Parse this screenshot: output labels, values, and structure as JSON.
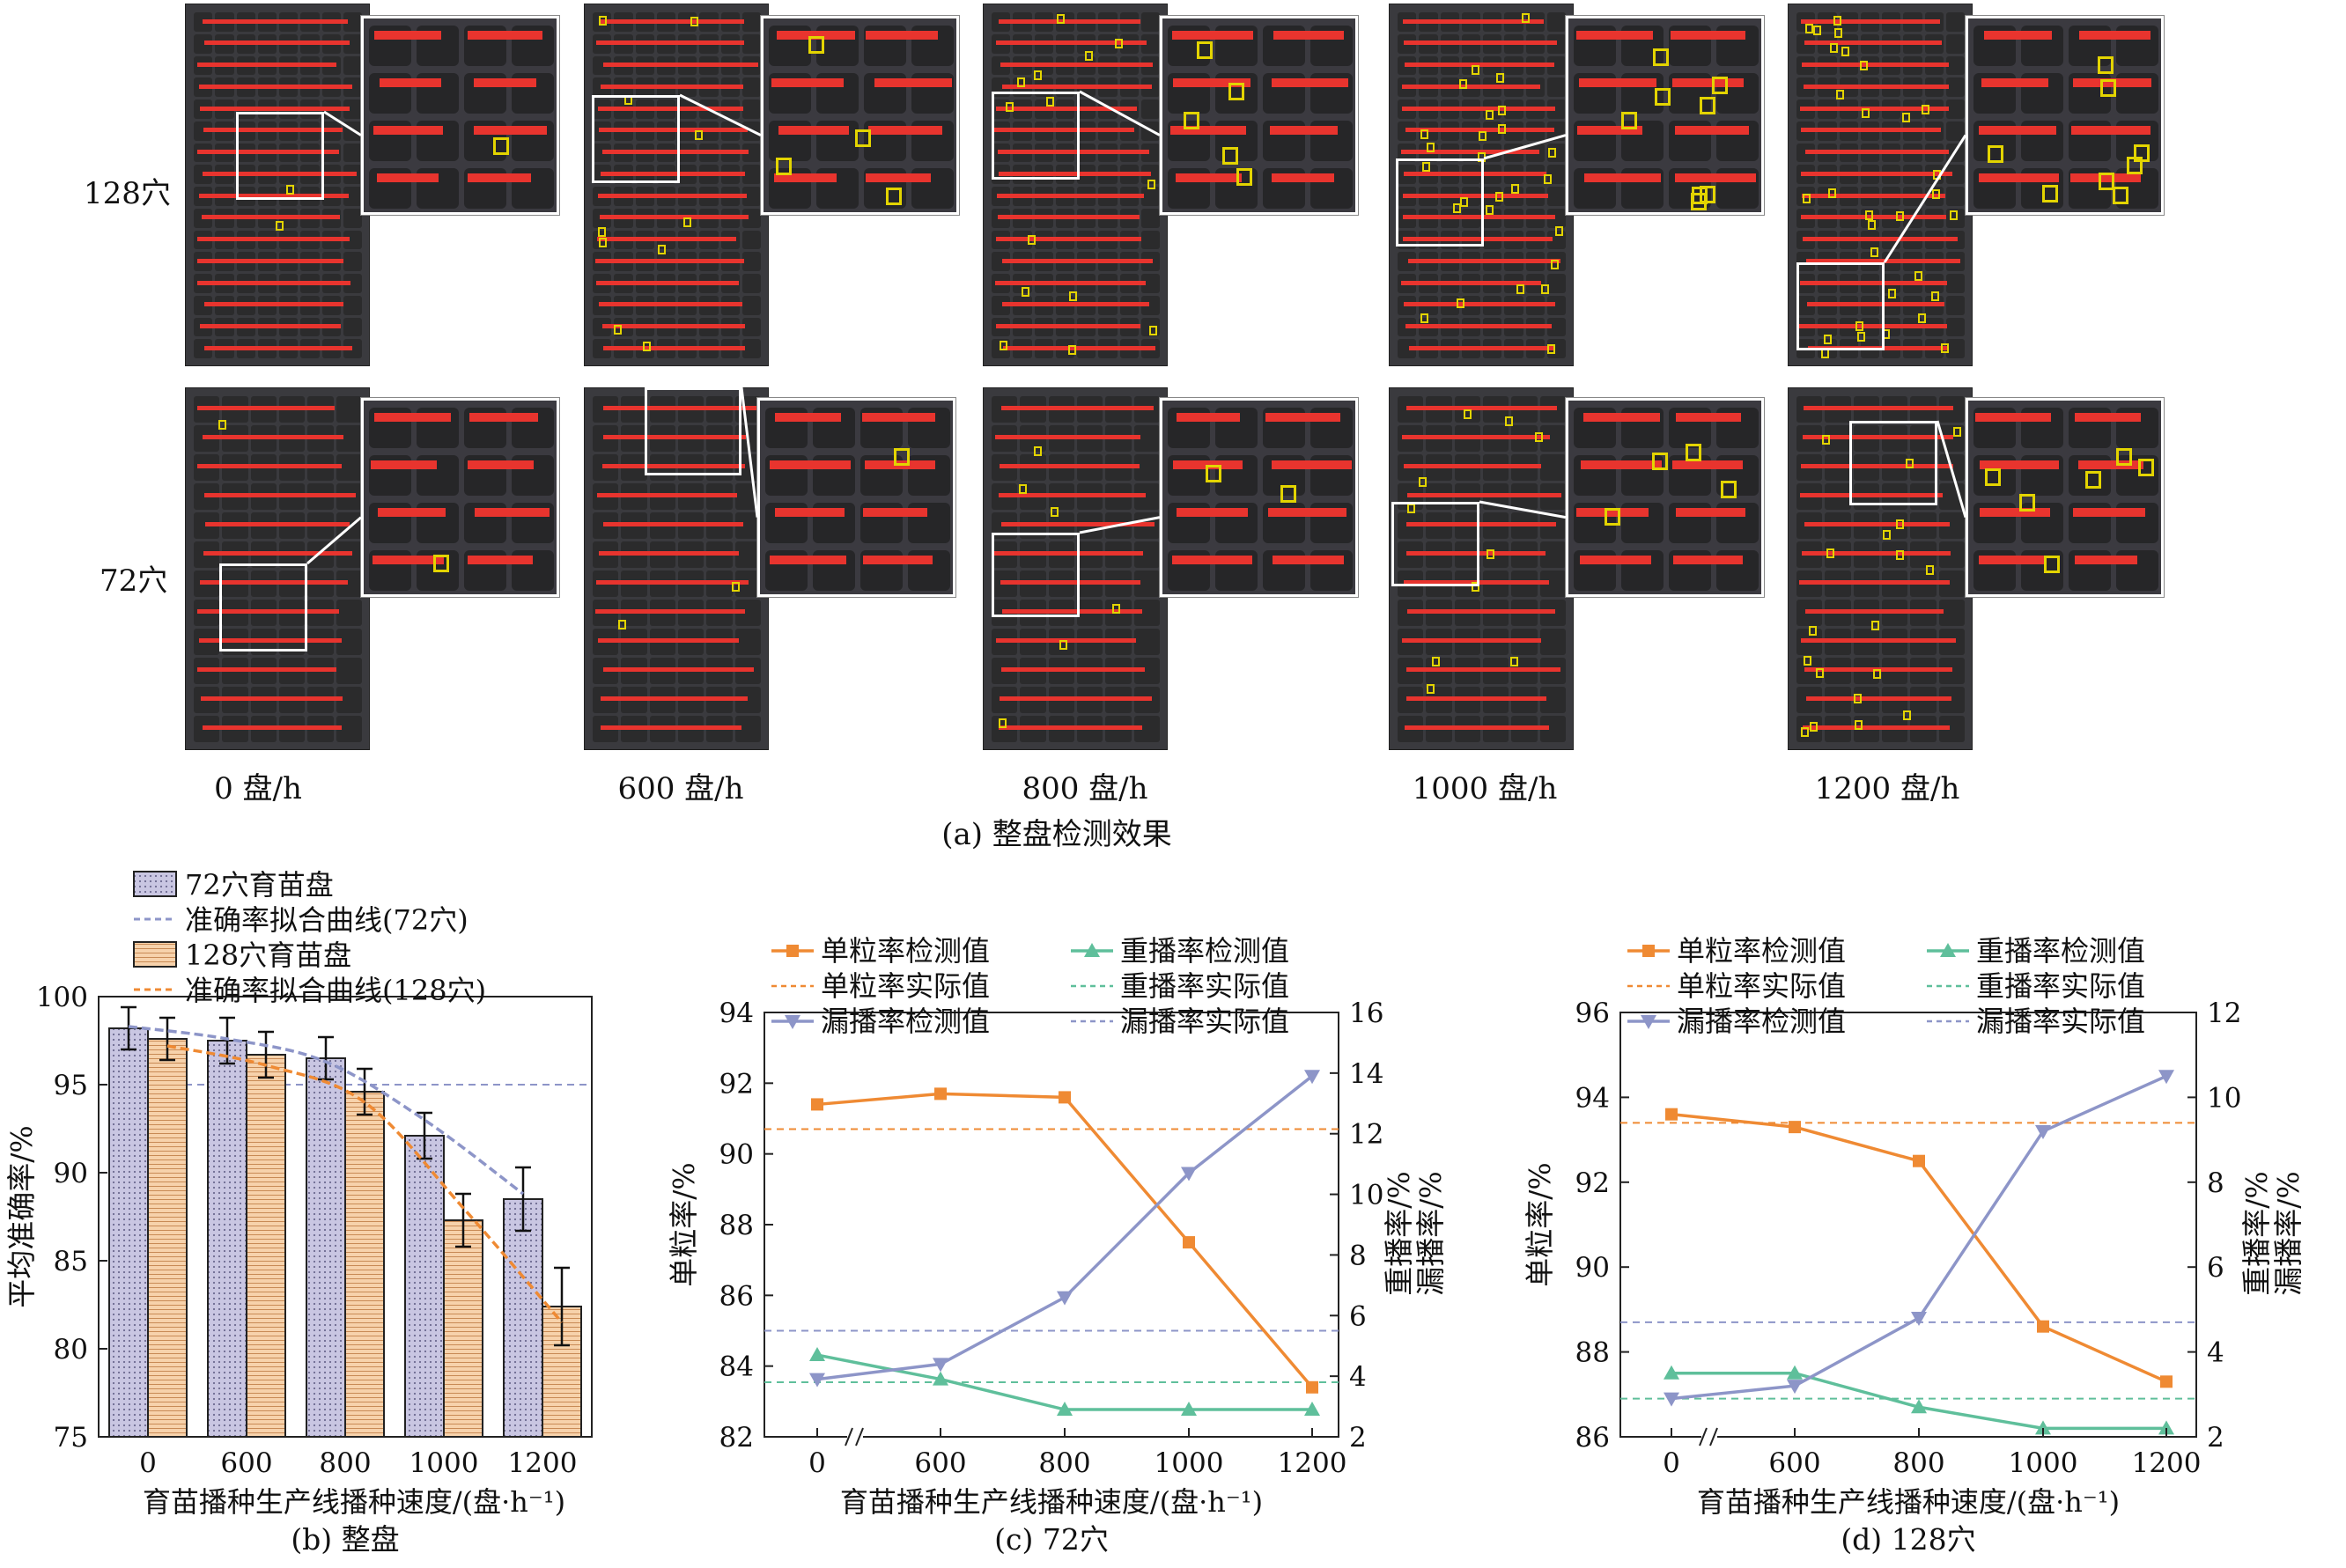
{
  "panel_a": {
    "row_labels": [
      "128穴",
      "72穴"
    ],
    "speed_labels": [
      "0 盘/h",
      "600 盘/h",
      "800 盘/h",
      "1000 盘/h",
      "1200 盘/h"
    ],
    "caption": "(a) 整盘检测效果",
    "colors": {
      "detection_box": "#e8342e",
      "miss_box": "#e3d400",
      "tray": "#3a3a3e"
    }
  },
  "chart_data": [
    {
      "type": "bar",
      "id": "b",
      "caption": "(b) 整盘",
      "xlabel": "育苗播种生产线播种速度/(盘·h⁻¹)",
      "ylabel": "平均准确率/%",
      "ylim": [
        75,
        100
      ],
      "yticks": [
        75,
        80,
        85,
        90,
        95,
        100
      ],
      "categories": [
        "0",
        "600",
        "800",
        "1000",
        "1200"
      ],
      "reference_line": 95,
      "legend_position": "top-left",
      "series": [
        {
          "name": "72穴育苗盘",
          "kind": "bar",
          "color": "#c9c6e2",
          "values": [
            98.2,
            97.5,
            96.5,
            92.1,
            88.5
          ],
          "errors": [
            1.2,
            1.3,
            1.2,
            1.3,
            1.8
          ]
        },
        {
          "name": "准确率拟合曲线(72穴)",
          "kind": "fit",
          "color": "#8d95c8",
          "values": [
            98.3,
            97.6,
            96.3,
            93.0,
            88.8
          ]
        },
        {
          "name": "128穴育苗盘",
          "kind": "bar",
          "color": "#f7d2ab",
          "values": [
            97.6,
            96.7,
            94.6,
            87.3,
            82.4
          ],
          "errors": [
            1.2,
            1.3,
            1.3,
            1.5,
            2.2
          ]
        },
        {
          "name": "准确率拟合曲线(128穴)",
          "kind": "fit",
          "color": "#ef8a33",
          "values": [
            97.2,
            96.1,
            94.0,
            88.0,
            81.5
          ]
        }
      ]
    },
    {
      "type": "line",
      "id": "c",
      "caption": "(c) 72穴",
      "xlabel": "育苗播种生产线播种速度/(盘·h⁻¹)",
      "ylabel_left": "单粒率/%",
      "ylabel_right": [
        "重播率/%",
        "漏播率/%"
      ],
      "x": [
        0,
        600,
        800,
        1000,
        1200
      ],
      "x_ticks": [
        "0",
        "600",
        "800",
        "1000",
        "1200"
      ],
      "ylim_left": [
        82,
        94
      ],
      "yticks_left": [
        82,
        84,
        86,
        88,
        90,
        92,
        94
      ],
      "ylim_right": [
        2,
        16
      ],
      "yticks_right": [
        2,
        4,
        6,
        8,
        10,
        12,
        14,
        16
      ],
      "legend_position": "top",
      "series": [
        {
          "name": "单粒率检测值",
          "axis": "left",
          "marker": "square",
          "color": "#ef8a33",
          "values": [
            91.4,
            91.7,
            91.6,
            87.5,
            83.4
          ]
        },
        {
          "name": "重播率检测值",
          "axis": "right",
          "marker": "triangle-up",
          "color": "#5fbf9b",
          "values": [
            4.7,
            3.9,
            2.9,
            2.9,
            2.9
          ]
        },
        {
          "name": "单粒率实际值",
          "axis": "left",
          "kind": "hline",
          "color": "#ef8a33",
          "value": 90.7
        },
        {
          "name": "重播率实际值",
          "axis": "right",
          "kind": "hline",
          "color": "#5fbf9b",
          "value": 3.8
        },
        {
          "name": "漏播率检测值",
          "axis": "right",
          "marker": "triangle-down",
          "color": "#8d95c8",
          "values": [
            3.9,
            4.4,
            6.6,
            10.7,
            13.9
          ]
        },
        {
          "name": "漏播率实际值",
          "axis": "right",
          "kind": "hline",
          "color": "#8d95c8",
          "value": 5.5
        }
      ]
    },
    {
      "type": "line",
      "id": "d",
      "caption": "(d) 128穴",
      "xlabel": "育苗播种生产线播种速度/(盘·h⁻¹)",
      "ylabel_left": "单粒率/%",
      "ylabel_right": [
        "重播率/%",
        "漏播率/%"
      ],
      "x": [
        0,
        600,
        800,
        1000,
        1200
      ],
      "x_ticks": [
        "0",
        "600",
        "800",
        "1000",
        "1200"
      ],
      "ylim_left": [
        86,
        96
      ],
      "yticks_left": [
        86,
        88,
        90,
        92,
        94,
        96
      ],
      "ylim_right": [
        2,
        12
      ],
      "yticks_right": [
        2,
        4,
        6,
        8,
        10,
        12
      ],
      "legend_position": "top",
      "series": [
        {
          "name": "单粒率检测值",
          "axis": "left",
          "marker": "square",
          "color": "#ef8a33",
          "values": [
            93.6,
            93.3,
            92.5,
            88.6,
            87.3
          ]
        },
        {
          "name": "重播率检测值",
          "axis": "right",
          "marker": "triangle-up",
          "color": "#5fbf9b",
          "values": [
            3.5,
            3.5,
            2.7,
            2.2,
            2.2
          ]
        },
        {
          "name": "单粒率实际值",
          "axis": "left",
          "kind": "hline",
          "color": "#ef8a33",
          "value": 93.4
        },
        {
          "name": "重播率实际值",
          "axis": "right",
          "kind": "hline",
          "color": "#5fbf9b",
          "value": 2.9
        },
        {
          "name": "漏播率检测值",
          "axis": "right",
          "marker": "triangle-down",
          "color": "#8d95c8",
          "values": [
            2.9,
            3.2,
            4.8,
            9.2,
            10.5
          ]
        },
        {
          "name": "漏播率实际值",
          "axis": "right",
          "kind": "hline",
          "color": "#8d95c8",
          "value": 4.7
        }
      ]
    }
  ]
}
